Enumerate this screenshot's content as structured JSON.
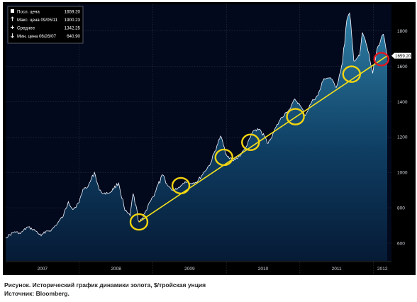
{
  "caption": "Рисунок. Исторический график динамики золота, $/тройская унция",
  "source": "Источник: Bloomberg.",
  "legend": [
    {
      "icon": "square-icon",
      "label": "Посл. цена",
      "value": "1659.20"
    },
    {
      "icon": "up-arrow-icon",
      "label": "Макс. цена 09/05/11",
      "value": "1900.23"
    },
    {
      "icon": "plus-icon",
      "label": "Среднее",
      "value": "1342.25"
    },
    {
      "icon": "down-arrow-icon",
      "label": "Мин. цена 06/26/07",
      "value": "640.90"
    }
  ],
  "colors": {
    "background": "#000000",
    "plot": "#03091c",
    "line": "#f2f6ff",
    "trend": "#f4e11c",
    "circle_yellow": "#f2d40f",
    "circle_red": "#e0191f",
    "grid": "#3a3f4c",
    "axis_text": "#d0d4dc"
  },
  "chart_data": {
    "type": "area",
    "title": "",
    "xlabel": "",
    "ylabel": "",
    "x_ticks": [
      "2007",
      "2008",
      "2009",
      "2010",
      "2011",
      "2012"
    ],
    "y_ticks": [
      600,
      800,
      1000,
      1200,
      1400,
      1600,
      1800
    ],
    "ylim": [
      500,
      1950
    ],
    "xlim": [
      "2007-01-01",
      "2012-03-31"
    ],
    "last_price_label": "1659.20",
    "grid": true,
    "legend_position": "top-left",
    "series": [
      {
        "x": [
          "2007-01-01",
          "2007-02-15",
          "2007-03-15",
          "2007-04-20",
          "2007-06-01",
          "2007-06-26",
          "2007-07-20",
          "2007-08-15",
          "2007-09-15",
          "2007-10-15",
          "2007-11-08",
          "2007-12-01",
          "2008-01-01",
          "2008-01-20",
          "2008-02-15",
          "2008-03-17",
          "2008-04-10",
          "2008-05-01",
          "2008-06-01",
          "2008-07-15",
          "2008-08-15",
          "2008-09-10",
          "2008-09-25",
          "2008-10-24",
          "2008-11-12",
          "2008-12-10",
          "2009-01-01",
          "2009-02-20",
          "2009-03-15",
          "2009-04-15",
          "2009-05-20",
          "2009-06-10",
          "2009-07-10",
          "2009-08-10",
          "2009-09-15",
          "2009-10-15",
          "2009-11-15",
          "2009-12-03",
          "2010-01-01",
          "2010-02-05",
          "2010-03-15",
          "2010-04-15",
          "2010-05-15",
          "2010-06-15",
          "2010-07-28",
          "2010-08-25",
          "2010-09-25",
          "2010-10-25",
          "2010-11-15",
          "2010-12-07",
          "2011-01-01",
          "2011-01-28",
          "2011-03-01",
          "2011-04-01",
          "2011-05-01",
          "2011-06-01",
          "2011-07-01",
          "2011-08-01",
          "2011-08-22",
          "2011-09-05",
          "2011-09-26",
          "2011-10-25",
          "2011-11-08",
          "2011-12-01",
          "2011-12-29",
          "2012-01-20",
          "2012-02-20",
          "2012-03-10"
        ],
        "values": [
          632,
          665,
          654,
          692,
          668,
          641,
          668,
          672,
          712,
          755,
          835,
          790,
          830,
          905,
          923,
          1000,
          900,
          880,
          885,
          940,
          785,
          755,
          880,
          720,
          740,
          820,
          862,
          985,
          925,
          895,
          925,
          948,
          938,
          948,
          1005,
          1052,
          1150,
          1205,
          1100,
          1065,
          1100,
          1155,
          1235,
          1245,
          1165,
          1230,
          1298,
          1340,
          1360,
          1415,
          1380,
          1322,
          1400,
          1435,
          1530,
          1535,
          1480,
          1620,
          1860,
          1900,
          1630,
          1660,
          1790,
          1710,
          1560,
          1700,
          1780,
          1659
        ]
      }
    ],
    "trend_line": {
      "from": {
        "x": "2008-10-24",
        "y": 720
      },
      "to": {
        "x": "2012-03-10",
        "y": 1659
      }
    },
    "highlight_points": [
      {
        "x": "2008-10-24",
        "y": 720,
        "color": "yellow"
      },
      {
        "x": "2009-05-20",
        "y": 925,
        "color": "yellow"
      },
      {
        "x": "2009-12-20",
        "y": 1085,
        "color": "yellow"
      },
      {
        "x": "2010-05-01",
        "y": 1170,
        "color": "yellow"
      },
      {
        "x": "2010-12-10",
        "y": 1315,
        "color": "yellow"
      },
      {
        "x": "2011-09-15",
        "y": 1555,
        "color": "yellow"
      },
      {
        "x": "2012-02-10",
        "y": 1640,
        "color": "red"
      }
    ]
  }
}
